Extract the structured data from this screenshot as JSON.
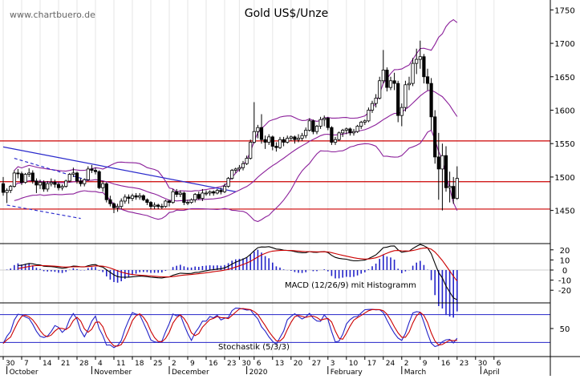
{
  "site_label": "www.chartbuero.de",
  "chart_data": [
    {
      "id": "price",
      "type": "candlestick",
      "title": "Gold US$/Unze",
      "ylim": [
        1410,
        1760
      ],
      "yticks": [
        1450,
        1500,
        1550,
        1600,
        1650,
        1700,
        1750
      ],
      "horizontal_lines": [
        1452,
        1493,
        1554
      ],
      "trendlines": [
        {
          "color": "#2a2acc",
          "style": "solid",
          "points": [
            [
              "2019-09-30",
              1545
            ],
            [
              "2019-12-27",
              1478
            ]
          ]
        },
        {
          "color": "#2a2acc",
          "style": "dashed",
          "points": [
            [
              "2019-10-03",
              1528
            ],
            [
              "2019-10-31",
              1495
            ]
          ]
        },
        {
          "color": "#2a2acc",
          "style": "dashed",
          "points": [
            [
              "2019-10-01",
              1458
            ],
            [
              "2019-10-29",
              1438
            ]
          ]
        }
      ],
      "candles": [
        [
          "2019-09-30",
          1490,
          1500,
          1472,
          1477
        ],
        [
          "2019-10-01",
          1477,
          1483,
          1461,
          1480
        ],
        [
          "2019-10-02",
          1480,
          1488,
          1476,
          1486
        ],
        [
          "2019-10-03",
          1486,
          1510,
          1484,
          1506
        ],
        [
          "2019-10-04",
          1506,
          1512,
          1498,
          1505
        ],
        [
          "2019-10-07",
          1505,
          1508,
          1488,
          1492
        ],
        [
          "2019-10-08",
          1492,
          1506,
          1490,
          1504
        ],
        [
          "2019-10-09",
          1504,
          1513,
          1500,
          1506
        ],
        [
          "2019-10-10",
          1506,
          1510,
          1490,
          1494
        ],
        [
          "2019-10-11",
          1494,
          1498,
          1476,
          1488
        ],
        [
          "2019-10-14",
          1488,
          1496,
          1482,
          1492
        ],
        [
          "2019-10-15",
          1492,
          1495,
          1478,
          1482
        ],
        [
          "2019-10-16",
          1482,
          1494,
          1478,
          1490
        ],
        [
          "2019-10-17",
          1490,
          1498,
          1486,
          1492
        ],
        [
          "2019-10-18",
          1492,
          1496,
          1484,
          1489
        ],
        [
          "2019-10-21",
          1489,
          1492,
          1480,
          1484
        ],
        [
          "2019-10-22",
          1484,
          1489,
          1480,
          1486
        ],
        [
          "2019-10-23",
          1486,
          1496,
          1484,
          1494
        ],
        [
          "2019-10-24",
          1494,
          1506,
          1492,
          1504
        ],
        [
          "2019-10-25",
          1504,
          1514,
          1500,
          1506
        ],
        [
          "2019-10-28",
          1506,
          1508,
          1490,
          1494
        ],
        [
          "2019-10-29",
          1494,
          1498,
          1486,
          1490
        ],
        [
          "2019-10-30",
          1490,
          1498,
          1486,
          1496
        ],
        [
          "2019-10-31",
          1496,
          1516,
          1494,
          1512
        ],
        [
          "2019-11-01",
          1512,
          1518,
          1506,
          1510
        ],
        [
          "2019-11-04",
          1510,
          1514,
          1504,
          1508
        ],
        [
          "2019-11-05",
          1508,
          1510,
          1482,
          1484
        ],
        [
          "2019-11-06",
          1484,
          1494,
          1478,
          1490
        ],
        [
          "2019-11-07",
          1490,
          1492,
          1462,
          1466
        ],
        [
          "2019-11-08",
          1466,
          1472,
          1456,
          1460
        ],
        [
          "2019-11-11",
          1460,
          1462,
          1446,
          1454
        ],
        [
          "2019-11-12",
          1454,
          1460,
          1448,
          1456
        ],
        [
          "2019-11-13",
          1456,
          1468,
          1452,
          1464
        ],
        [
          "2019-11-14",
          1464,
          1474,
          1460,
          1470
        ],
        [
          "2019-11-15",
          1470,
          1474,
          1460,
          1468
        ],
        [
          "2019-11-18",
          1468,
          1475,
          1464,
          1472
        ],
        [
          "2019-11-19",
          1472,
          1476,
          1466,
          1470
        ],
        [
          "2019-11-20",
          1470,
          1476,
          1466,
          1472
        ],
        [
          "2019-11-21",
          1472,
          1474,
          1464,
          1466
        ],
        [
          "2019-11-22",
          1466,
          1468,
          1458,
          1462
        ],
        [
          "2019-11-25",
          1462,
          1464,
          1452,
          1456
        ],
        [
          "2019-11-26",
          1456,
          1462,
          1452,
          1458
        ],
        [
          "2019-11-27",
          1458,
          1460,
          1452,
          1456
        ],
        [
          "2019-11-28",
          1456,
          1460,
          1452,
          1456
        ],
        [
          "2019-11-29",
          1456,
          1466,
          1454,
          1464
        ],
        [
          "2019-12-02",
          1464,
          1466,
          1456,
          1462
        ],
        [
          "2019-12-03",
          1462,
          1482,
          1460,
          1478
        ],
        [
          "2019-12-04",
          1478,
          1482,
          1470,
          1474
        ],
        [
          "2019-12-05",
          1474,
          1480,
          1470,
          1476
        ],
        [
          "2019-12-06",
          1476,
          1478,
          1458,
          1462
        ],
        [
          "2019-12-09",
          1462,
          1466,
          1458,
          1462
        ],
        [
          "2019-12-10",
          1462,
          1468,
          1460,
          1466
        ],
        [
          "2019-12-11",
          1466,
          1476,
          1462,
          1474
        ],
        [
          "2019-12-12",
          1474,
          1478,
          1466,
          1468
        ],
        [
          "2019-12-13",
          1468,
          1482,
          1464,
          1476
        ],
        [
          "2019-12-16",
          1476,
          1480,
          1472,
          1476
        ],
        [
          "2019-12-17",
          1476,
          1480,
          1472,
          1478
        ],
        [
          "2019-12-18",
          1478,
          1480,
          1472,
          1476
        ],
        [
          "2019-12-19",
          1476,
          1482,
          1474,
          1480
        ],
        [
          "2019-12-20",
          1480,
          1484,
          1474,
          1478
        ],
        [
          "2019-12-23",
          1478,
          1490,
          1476,
          1486
        ],
        [
          "2019-12-24",
          1486,
          1500,
          1484,
          1498
        ],
        [
          "2019-12-26",
          1498,
          1512,
          1496,
          1510
        ],
        [
          "2019-12-27",
          1510,
          1514,
          1506,
          1512
        ],
        [
          "2019-12-30",
          1512,
          1518,
          1508,
          1514
        ],
        [
          "2019-12-31",
          1514,
          1524,
          1510,
          1520
        ],
        [
          "2020-01-02",
          1520,
          1532,
          1518,
          1528
        ],
        [
          "2020-01-03",
          1528,
          1556,
          1526,
          1552
        ],
        [
          "2020-01-06",
          1552,
          1612,
          1550,
          1568
        ],
        [
          "2020-01-07",
          1568,
          1578,
          1558,
          1574
        ],
        [
          "2020-01-08",
          1574,
          1594,
          1550,
          1556
        ],
        [
          "2020-01-09",
          1556,
          1562,
          1542,
          1552
        ],
        [
          "2020-01-10",
          1552,
          1564,
          1548,
          1560
        ],
        [
          "2020-01-13",
          1560,
          1562,
          1540,
          1546
        ],
        [
          "2020-01-14",
          1546,
          1552,
          1538,
          1544
        ],
        [
          "2020-01-15",
          1544,
          1560,
          1542,
          1556
        ],
        [
          "2020-01-16",
          1556,
          1560,
          1546,
          1552
        ],
        [
          "2020-01-17",
          1552,
          1562,
          1550,
          1558
        ],
        [
          "2020-01-20",
          1558,
          1562,
          1554,
          1560
        ],
        [
          "2020-01-21",
          1560,
          1562,
          1550,
          1556
        ],
        [
          "2020-01-22",
          1556,
          1564,
          1552,
          1558
        ],
        [
          "2020-01-23",
          1558,
          1566,
          1554,
          1562
        ],
        [
          "2020-01-24",
          1562,
          1574,
          1558,
          1570
        ],
        [
          "2020-01-27",
          1570,
          1588,
          1568,
          1584
        ],
        [
          "2020-01-28",
          1584,
          1586,
          1564,
          1568
        ],
        [
          "2020-01-29",
          1568,
          1578,
          1564,
          1576
        ],
        [
          "2020-01-30",
          1576,
          1590,
          1572,
          1586
        ],
        [
          "2020-01-31",
          1586,
          1592,
          1576,
          1588
        ],
        [
          "2020-02-03",
          1588,
          1590,
          1570,
          1574
        ],
        [
          "2020-02-04",
          1574,
          1576,
          1548,
          1552
        ],
        [
          "2020-02-05",
          1552,
          1560,
          1548,
          1556
        ],
        [
          "2020-02-06",
          1556,
          1568,
          1554,
          1566
        ],
        [
          "2020-02-07",
          1566,
          1572,
          1560,
          1570
        ],
        [
          "2020-02-10",
          1570,
          1574,
          1564,
          1572
        ],
        [
          "2020-02-11",
          1572,
          1574,
          1562,
          1566
        ],
        [
          "2020-02-12",
          1566,
          1572,
          1562,
          1568
        ],
        [
          "2020-02-13",
          1568,
          1578,
          1566,
          1576
        ],
        [
          "2020-02-14",
          1576,
          1584,
          1572,
          1582
        ],
        [
          "2020-02-17",
          1582,
          1586,
          1578,
          1584
        ],
        [
          "2020-02-18",
          1584,
          1604,
          1582,
          1600
        ],
        [
          "2020-02-19",
          1600,
          1614,
          1596,
          1610
        ],
        [
          "2020-02-20",
          1610,
          1624,
          1604,
          1618
        ],
        [
          "2020-02-21",
          1618,
          1650,
          1616,
          1644
        ],
        [
          "2020-02-24",
          1644,
          1690,
          1640,
          1660
        ],
        [
          "2020-02-25",
          1660,
          1664,
          1628,
          1634
        ],
        [
          "2020-02-26",
          1634,
          1650,
          1630,
          1644
        ],
        [
          "2020-02-27",
          1644,
          1656,
          1630,
          1640
        ],
        [
          "2020-02-28",
          1640,
          1644,
          1582,
          1592
        ],
        [
          "2020-03-02",
          1592,
          1610,
          1576,
          1604
        ],
        [
          "2020-03-03",
          1604,
          1644,
          1598,
          1638
        ],
        [
          "2020-03-04",
          1638,
          1650,
          1630,
          1640
        ],
        [
          "2020-03-05",
          1640,
          1678,
          1636,
          1670
        ],
        [
          "2020-03-06",
          1670,
          1692,
          1654,
          1676
        ],
        [
          "2020-03-09",
          1676,
          1704,
          1662,
          1680
        ],
        [
          "2020-03-10",
          1680,
          1684,
          1640,
          1650
        ],
        [
          "2020-03-11",
          1650,
          1662,
          1630,
          1640
        ],
        [
          "2020-03-12",
          1640,
          1648,
          1570,
          1590
        ],
        [
          "2020-03-13",
          1590,
          1600,
          1520,
          1530
        ],
        [
          "2020-03-16",
          1530,
          1566,
          1466,
          1512
        ],
        [
          "2020-03-17",
          1512,
          1550,
          1450,
          1532
        ],
        [
          "2020-03-18",
          1532,
          1546,
          1478,
          1484
        ],
        [
          "2020-03-19",
          1484,
          1508,
          1462,
          1486
        ],
        [
          "2020-03-20",
          1486,
          1500,
          1460,
          1468
        ],
        [
          "2020-03-23",
          1468,
          1516,
          1466,
          1498
        ]
      ],
      "bollinger_color": "#8b1f9a",
      "candle_colors": {
        "up": "#ffffff",
        "down": "#000000",
        "outline": "#000000"
      },
      "level_line_color": "#cc0000"
    },
    {
      "id": "macd",
      "type": "line",
      "label": "MACD (12/26/9) mit Histogramm",
      "ylim": [
        -28,
        28
      ],
      "yticks": [
        20,
        10,
        0,
        -10,
        -20
      ],
      "series_colors": {
        "macd": "#000000",
        "signal": "#cc0000",
        "histogram": "#2323c8"
      }
    },
    {
      "id": "stochastic",
      "type": "line",
      "label": "Stochastik (5/3/3)",
      "ylim": [
        0,
        100
      ],
      "yticks": [
        50
      ],
      "bands": [
        20,
        80
      ],
      "series_colors": {
        "k": "#2323c8",
        "d": "#cc0000"
      }
    }
  ],
  "x_axis": {
    "day_labels": [
      "30",
      "7",
      "14",
      "21",
      "28",
      "4",
      "11",
      "18",
      "25",
      "2",
      "9",
      "16",
      "23",
      "30",
      "6",
      "13",
      "20",
      "27",
      "3",
      "10",
      "17",
      "24",
      "2",
      "9",
      "16",
      "23",
      "30",
      "6"
    ],
    "month_labels": [
      "October",
      "November",
      "December",
      "2020",
      "February",
      "March",
      "April"
    ]
  }
}
